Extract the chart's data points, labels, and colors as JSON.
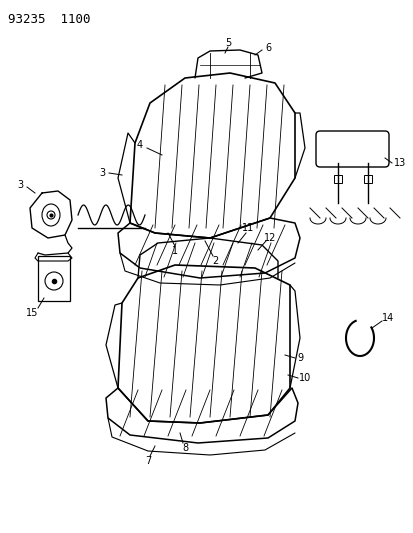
{
  "title": "93235  1100",
  "bg_color": "#ffffff",
  "line_color": "#000000",
  "fig_width": 4.14,
  "fig_height": 5.33,
  "dpi": 100
}
